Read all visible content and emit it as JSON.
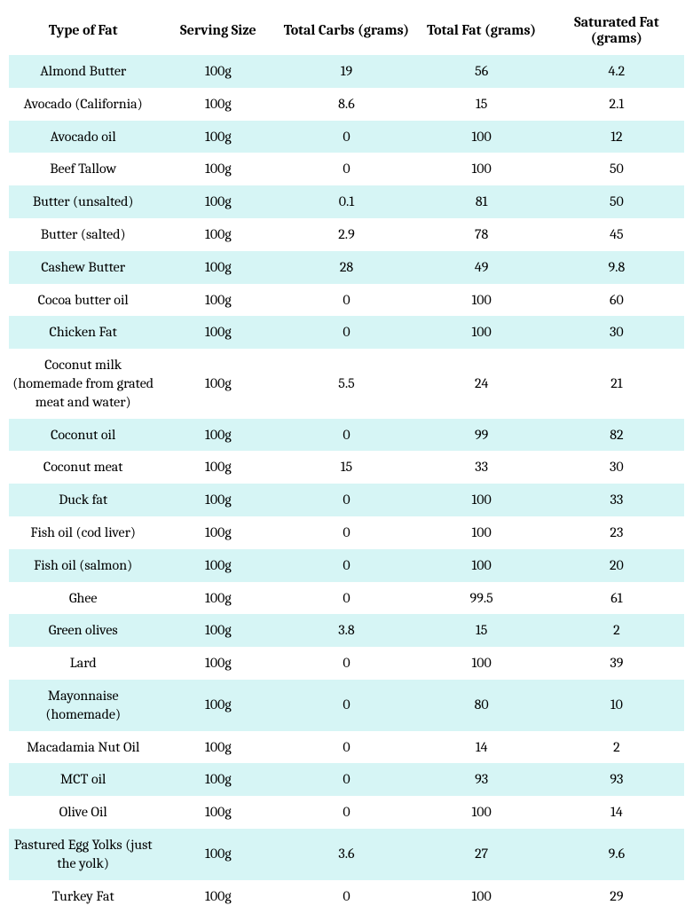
{
  "table": {
    "type": "table",
    "background_color": "#ffffff",
    "row_stripe_color": "#d6f5f5",
    "header_fontsize": 16,
    "cell_fontsize": 16,
    "text_color": "#000000",
    "font_family": "Cambria, Georgia, serif",
    "column_widths_pct": [
      22,
      18,
      20,
      20,
      20
    ],
    "alignment": [
      "center",
      "center",
      "center",
      "center",
      "center"
    ],
    "columns": [
      "Type of Fat",
      "Serving Size",
      "Total Carbs (grams)",
      "Total Fat (grams)",
      "Saturated Fat (grams)"
    ],
    "rows": [
      [
        "Almond Butter",
        "100g",
        "19",
        "56",
        "4.2"
      ],
      [
        "Avocado (California)",
        "100g",
        "8.6",
        "15",
        "2.1"
      ],
      [
        "Avocado oil",
        "100g",
        "0",
        "100",
        "12"
      ],
      [
        "Beef Tallow",
        "100g",
        "0",
        "100",
        "50"
      ],
      [
        "Butter (unsalted)",
        "100g",
        "0.1",
        "81",
        "50"
      ],
      [
        "Butter (salted)",
        "100g",
        "2.9",
        "78",
        "45"
      ],
      [
        "Cashew Butter",
        "100g",
        "28",
        "49",
        "9.8"
      ],
      [
        "Cocoa butter oil",
        "100g",
        "0",
        "100",
        "60"
      ],
      [
        "Chicken Fat",
        "100g",
        "0",
        "100",
        "30"
      ],
      [
        "Coconut milk (homemade from grated meat and water)",
        "100g",
        "5.5",
        "24",
        "21"
      ],
      [
        "Coconut oil",
        "100g",
        "0",
        "99",
        "82"
      ],
      [
        "Coconut meat",
        "100g",
        "15",
        "33",
        "30"
      ],
      [
        "Duck fat",
        "100g",
        "0",
        "100",
        "33"
      ],
      [
        "Fish oil (cod liver)",
        "100g",
        "0",
        "100",
        "23"
      ],
      [
        "Fish oil (salmon)",
        "100g",
        "0",
        "100",
        "20"
      ],
      [
        "Ghee",
        "100g",
        "0",
        "99.5",
        "61"
      ],
      [
        "Green olives",
        "100g",
        "3.8",
        "15",
        "2"
      ],
      [
        "Lard",
        "100g",
        "0",
        "100",
        "39"
      ],
      [
        "Mayonnaise (homemade)",
        "100g",
        "0",
        "80",
        "10"
      ],
      [
        "Macadamia Nut Oil",
        "100g",
        "0",
        "14",
        "2"
      ],
      [
        "MCT oil",
        "100g",
        "0",
        "93",
        "93"
      ],
      [
        "Olive Oil",
        "100g",
        "0",
        "100",
        "14"
      ],
      [
        "Pastured Egg Yolks (just the yolk)",
        "100g",
        "3.6",
        "27",
        "9.6"
      ],
      [
        "Turkey Fat",
        "100g",
        "0",
        "100",
        "29"
      ]
    ]
  }
}
